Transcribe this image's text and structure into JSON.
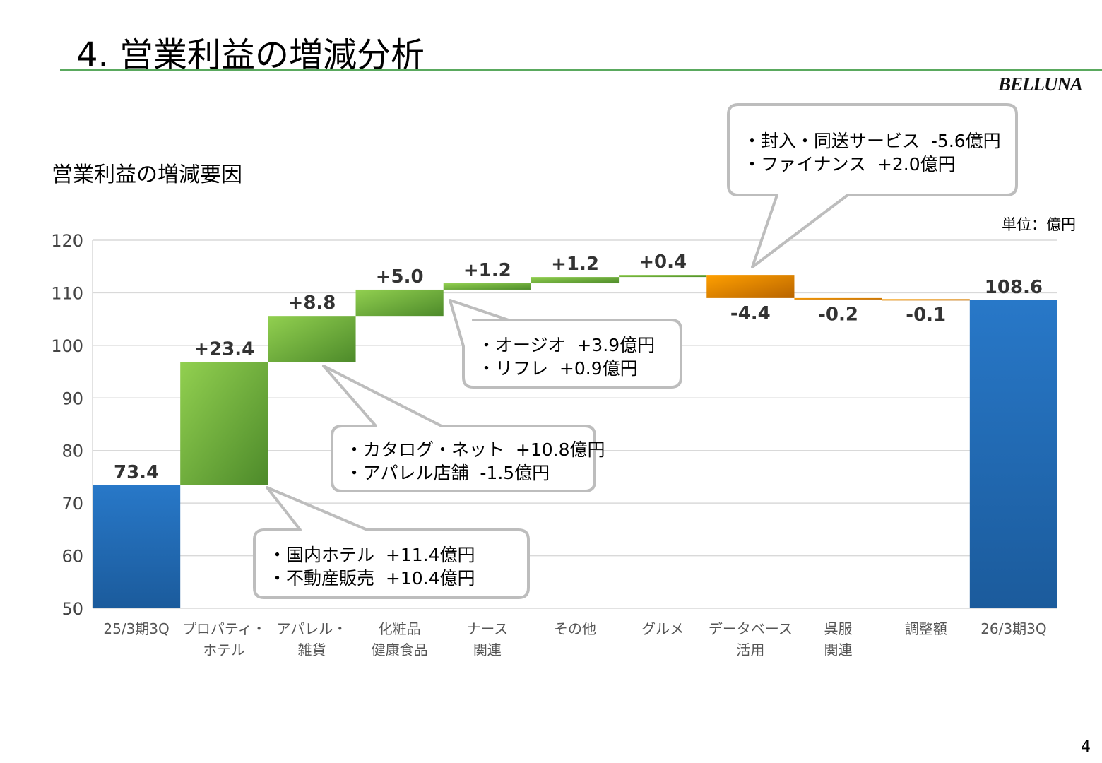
{
  "title": "4. 営業利益の増減分析",
  "logo": "BELLUNA",
  "subtitle": "営業利益の増減要因",
  "unit": "単位：億円",
  "page_number": "4",
  "colors": {
    "start_end": "#1f6fb5",
    "increase": "#6fb33a",
    "decrease": "#f08c00",
    "rule": "#5aa95e"
  },
  "callouts": [
    {
      "lines": [
        "・封入・同送サービス  -5.6億円",
        "・ファイナンス  +2.0億円"
      ]
    },
    {
      "lines": [
        "・オージオ  +3.9億円",
        "・リフレ  +0.9億円"
      ]
    },
    {
      "lines": [
        "・カタログ・ネット  +10.8億円",
        "・アパレル店舗  -1.5億円"
      ]
    },
    {
      "lines": [
        "・国内ホテル  +11.4億円",
        "・不動産販売  +10.4億円"
      ]
    }
  ],
  "chart_data": {
    "type": "waterfall",
    "categories": [
      "25/3期3Q",
      "プロパティ・\nホテル",
      "アパレル・\n雑貨",
      "化粧品\n健康食品",
      "ナース\n関連",
      "その他",
      "グルメ",
      "データベース\n活用",
      "呉服\n関連",
      "調整額",
      "26/3期3Q"
    ],
    "values": [
      73.4,
      23.4,
      8.8,
      5.0,
      1.2,
      1.2,
      0.4,
      -4.4,
      -0.2,
      -0.1,
      108.6
    ],
    "kinds": [
      "total",
      "delta",
      "delta",
      "delta",
      "delta",
      "delta",
      "delta",
      "delta",
      "delta",
      "delta",
      "total"
    ],
    "labels": [
      "73.4",
      "+23.4",
      "+8.8",
      "+5.0",
      "+1.2",
      "+1.2",
      "+0.4",
      "-4.4",
      "-0.2",
      "-0.1",
      "108.6"
    ],
    "ylim": [
      50,
      120
    ],
    "yticks": [
      50,
      60,
      70,
      80,
      90,
      100,
      110,
      120
    ],
    "grid": true
  }
}
